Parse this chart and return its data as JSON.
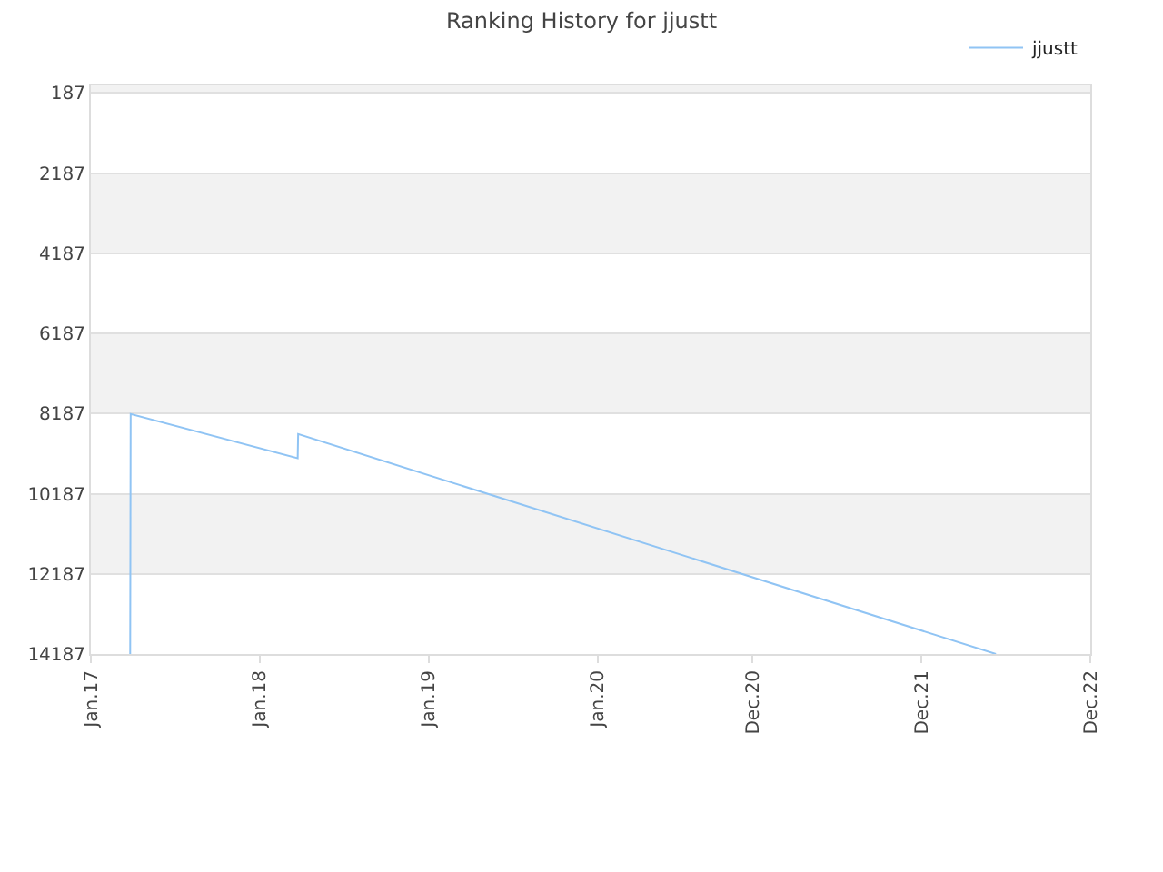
{
  "chart_data": {
    "type": "line",
    "title": "Ranking History for jjustt",
    "x": [
      "2017-03-27",
      "2017-03-28",
      "2018-03-24",
      "2018-03-25",
      "2022-05-11"
    ],
    "series": [
      {
        "name": "jjustt",
        "color": "#90c4f4",
        "values": [
          14187,
          8200,
          9300,
          8700,
          14187
        ]
      }
    ],
    "xlim": [
      "2017-01-01",
      "2022-12-01"
    ],
    "xticks": [
      {
        "value": "2017-01-01",
        "label": "Jan.17"
      },
      {
        "value": "2018-01-01",
        "label": "Jan.18"
      },
      {
        "value": "2019-01-01",
        "label": "Jan.19"
      },
      {
        "value": "2020-01-01",
        "label": "Jan.20"
      },
      {
        "value": "2020-12-01",
        "label": "Dec.20"
      },
      {
        "value": "2021-12-01",
        "label": "Dec.21"
      },
      {
        "value": "2022-12-01",
        "label": "Dec.22"
      }
    ],
    "ylim": [
      14187,
      0
    ],
    "yticks": [
      187,
      2187,
      4187,
      6187,
      8187,
      10187,
      12187,
      14187
    ],
    "bands": [
      {
        "axis": "y",
        "from": 0,
        "to": 187,
        "color": "#f2f2f2"
      },
      {
        "axis": "y",
        "from": 2187,
        "to": 4187,
        "color": "#f2f2f2"
      },
      {
        "axis": "y",
        "from": 6187,
        "to": 8187,
        "color": "#f2f2f2"
      },
      {
        "axis": "y",
        "from": 10187,
        "to": 12187,
        "color": "#f2f2f2"
      }
    ],
    "grid": "y",
    "legend": "top right",
    "marker": "none",
    "line_style": "solid"
  }
}
